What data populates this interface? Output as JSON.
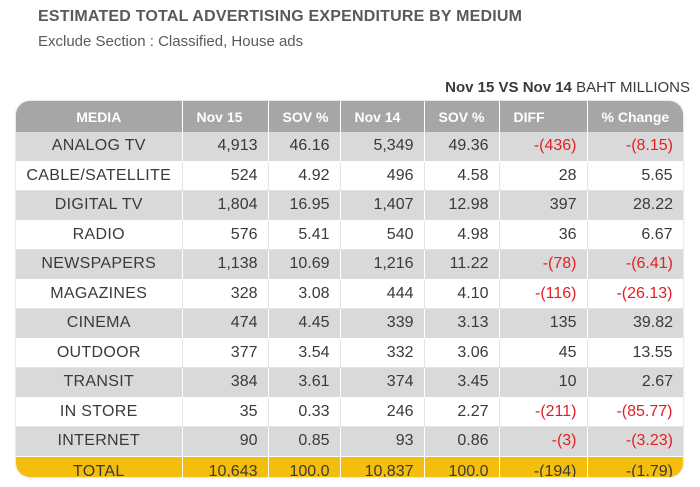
{
  "header": {
    "title": "ESTIMATED TOTAL ADVERTISING EXPENDITURE BY MEDIUM",
    "subtitle": "Exclude Section : Classified, House ads",
    "period": "Nov 15 VS Nov 14",
    "unit": "BAHT MILLIONS"
  },
  "table": {
    "columns": [
      "MEDIA",
      "Nov 15",
      "SOV %",
      "Nov 14",
      "SOV %",
      "DIFF",
      "% Change"
    ],
    "rows": [
      {
        "media": "ANALOG   TV",
        "nov15": "4,913",
        "sov15": "46.16",
        "nov14": "5,349",
        "sov14": "49.36",
        "diff": "-(436)",
        "change": "-(8.15)",
        "neg": true
      },
      {
        "media": "CABLE/SATELLITE",
        "nov15": "524",
        "sov15": "4.92",
        "nov14": "496",
        "sov14": "4.58",
        "diff": "28",
        "change": "5.65",
        "neg": false
      },
      {
        "media": "DIGITAL TV",
        "nov15": "1,804",
        "sov15": "16.95",
        "nov14": "1,407",
        "sov14": "12.98",
        "diff": "397",
        "change": "28.22",
        "neg": false
      },
      {
        "media": "RADIO",
        "nov15": "576",
        "sov15": "5.41",
        "nov14": "540",
        "sov14": "4.98",
        "diff": "36",
        "change": "6.67",
        "neg": false
      },
      {
        "media": "NEWSPAPERS",
        "nov15": "1,138",
        "sov15": "10.69",
        "nov14": "1,216",
        "sov14": "11.22",
        "diff": "-(78)",
        "change": "-(6.41)",
        "neg": true
      },
      {
        "media": "MAGAZINES",
        "nov15": "328",
        "sov15": "3.08",
        "nov14": "444",
        "sov14": "4.10",
        "diff": "-(116)",
        "change": "-(26.13)",
        "neg": true
      },
      {
        "media": "CINEMA",
        "nov15": "474",
        "sov15": "4.45",
        "nov14": "339",
        "sov14": "3.13",
        "diff": "135",
        "change": "39.82",
        "neg": false
      },
      {
        "media": "OUTDOOR",
        "nov15": "377",
        "sov15": "3.54",
        "nov14": "332",
        "sov14": "3.06",
        "diff": "45",
        "change": "13.55",
        "neg": false
      },
      {
        "media": "TRANSIT",
        "nov15": "384",
        "sov15": "3.61",
        "nov14": "374",
        "sov14": "3.45",
        "diff": "10",
        "change": "2.67",
        "neg": false
      },
      {
        "media": "IN STORE",
        "nov15": "35",
        "sov15": "0.33",
        "nov14": "246",
        "sov14": "2.27",
        "diff": "-(211)",
        "change": "-(85.77)",
        "neg": true
      },
      {
        "media": "INTERNET",
        "nov15": "90",
        "sov15": "0.85",
        "nov14": "93",
        "sov14": "0.86",
        "diff": "-(3)",
        "change": "-(3.23)",
        "neg": true
      }
    ],
    "total": {
      "media": "TOTAL",
      "nov15": "10,643",
      "sov15": "100.0",
      "nov14": "10,837",
      "sov14": "100.0",
      "diff": "-(194)",
      "change": "-(1.79)"
    }
  },
  "colors": {
    "header_bg": "#a6a6a6",
    "odd_row_bg": "#d9d9d9",
    "total_bg": "#f4be0c",
    "negative_text": "#e21f24"
  }
}
